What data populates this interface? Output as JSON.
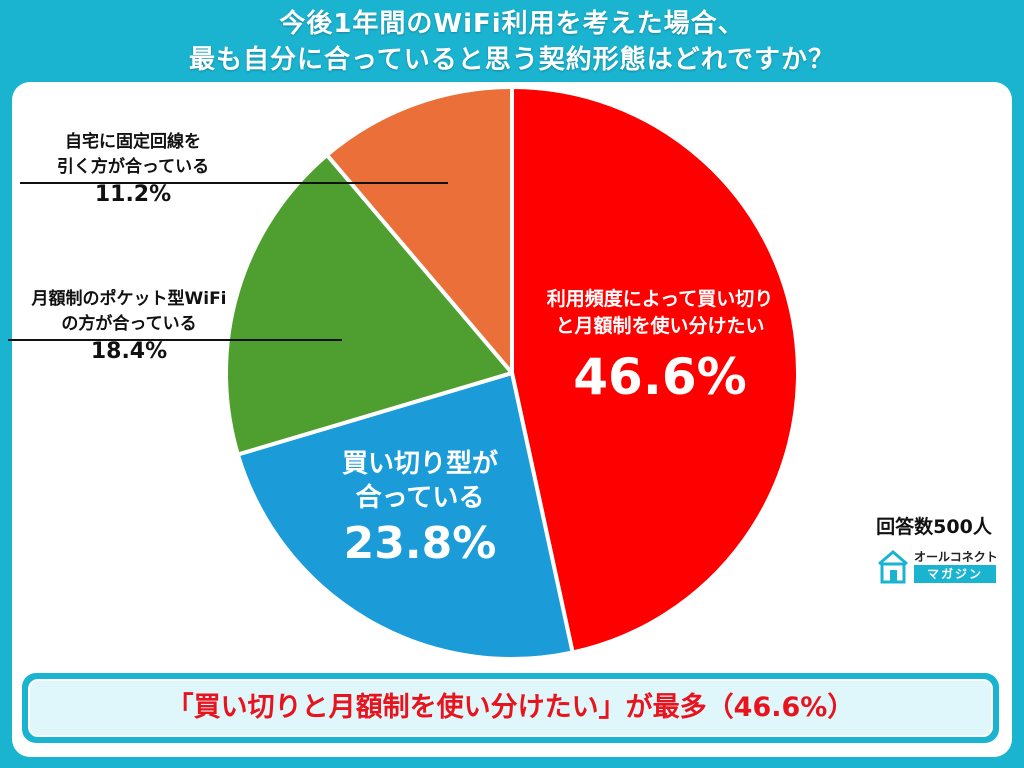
{
  "title_lines": [
    "今後1年間のWiFi利用を考えた場合、",
    "最も自分に合っていると思う契約形態はどれですか？"
  ],
  "chart_data": {
    "type": "pie",
    "title": "今後1年間のWiFi利用を考えた場合、最も自分に合っていると思う契約形態はどれですか？",
    "slices": [
      {
        "label_lines": [
          "利用頻度によって買い切り",
          "と月額制を使い分けたい"
        ],
        "value": 46.6,
        "pct_text": "46.6%",
        "color": "#fe0000"
      },
      {
        "label_lines": [
          "買い切り型が",
          "合っている"
        ],
        "value": 23.8,
        "pct_text": "23.8%",
        "color": "#1b9bd7"
      },
      {
        "label_lines": [
          "月額制のポケット型WiFi",
          "の方が合っている"
        ],
        "value": 18.4,
        "pct_text": "18.4%",
        "color": "#4e9f30"
      },
      {
        "label_lines": [
          "自宅に固定回線を",
          "引く方が合っている"
        ],
        "value": 11.2,
        "pct_text": "11.2%",
        "color": "#ea6f38"
      }
    ]
  },
  "respondents": "回答数500人",
  "logo": {
    "line1": "オールコネクト",
    "line2": "マガジン",
    "icon": "house-icon"
  },
  "banner": "「買い切りと月額制を使い分けたい」が最多（46.6%）"
}
